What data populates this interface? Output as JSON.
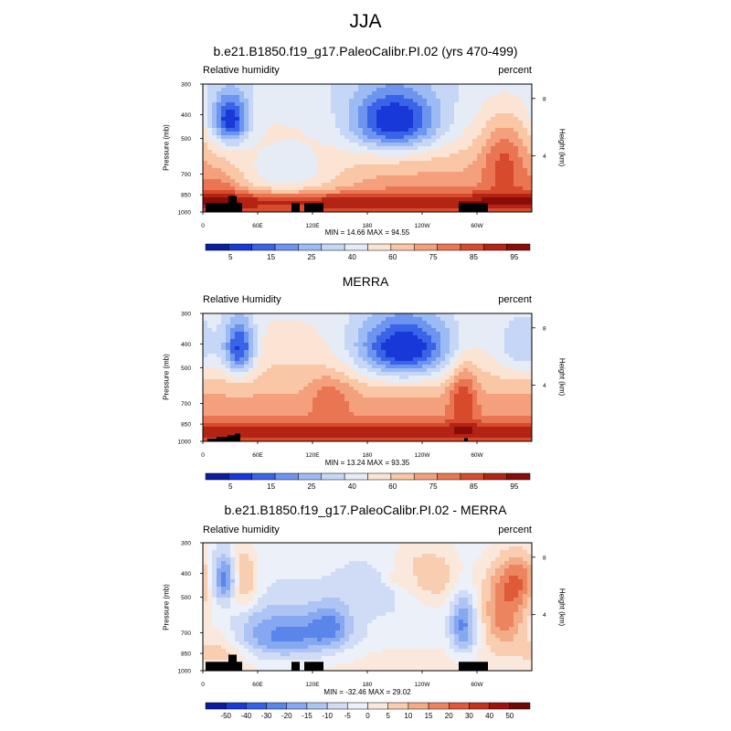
{
  "figure": {
    "title": "JJA"
  },
  "chart_data": [
    {
      "type": "heatmap",
      "title": "b.e21.B1850.f19_g17.PaleoCalibr.PI.02 (yrs 470-499)",
      "variable": "Relative humidity",
      "units": "percent",
      "ylabel": "Pressure (mb)",
      "ylabel_right": "Height (km)",
      "x_ticks": [
        "0",
        "60E",
        "120E",
        "180",
        "120W",
        "60W"
      ],
      "x_tick_values": [
        0,
        60,
        120,
        180,
        240,
        300
      ],
      "xlim": [
        0,
        360
      ],
      "y_ticks": [
        300,
        400,
        500,
        700,
        850,
        1000
      ],
      "ylim": [
        1000,
        300
      ],
      "height_ticks_km": [
        4,
        8
      ],
      "stats": "MIN = 14.66  MAX = 94.55",
      "min": 14.66,
      "max": 94.55,
      "colorbar_labels": [
        "5",
        "15",
        "25",
        "40",
        "60",
        "75",
        "85",
        "95"
      ],
      "features": [
        {
          "lon": 30,
          "p": 420,
          "rh": 15
        },
        {
          "lon": 210,
          "p": 430,
          "rh": 18
        },
        {
          "lon": 330,
          "p": 600,
          "rh": 75
        },
        {
          "lon": 90,
          "p": 720,
          "rh": 30
        },
        {
          "lon": 190,
          "p": 900,
          "rh": 92
        },
        {
          "lon": 20,
          "p": 800,
          "rh": 80
        }
      ]
    },
    {
      "type": "heatmap",
      "title": "MERRA",
      "variable": "Relative Humidity",
      "units": "percent",
      "ylabel": "Pressure (mb)",
      "ylabel_right": "Height (km)",
      "x_ticks": [
        "0",
        "60E",
        "120E",
        "180",
        "120W",
        "60W"
      ],
      "x_tick_values": [
        0,
        60,
        120,
        180,
        240,
        300
      ],
      "xlim": [
        0,
        360
      ],
      "y_ticks": [
        300,
        400,
        500,
        700,
        850,
        1000
      ],
      "ylim": [
        1000,
        300
      ],
      "height_ticks_km": [
        4,
        8
      ],
      "stats": "MIN = 13.24  MAX = 93.35",
      "min": 13.24,
      "max": 93.35,
      "colorbar_labels": [
        "5",
        "15",
        "25",
        "40",
        "60",
        "75",
        "85",
        "95"
      ],
      "features": [
        {
          "lon": 40,
          "p": 420,
          "rh": 20
        },
        {
          "lon": 220,
          "p": 420,
          "rh": 15
        },
        {
          "lon": 140,
          "p": 650,
          "rh": 75
        },
        {
          "lon": 285,
          "p": 650,
          "rh": 85
        },
        {
          "lon": 180,
          "p": 900,
          "rh": 90
        }
      ]
    },
    {
      "type": "heatmap",
      "title": "b.e21.B1850.f19_g17.PaleoCalibr.PI.02 - MERRA",
      "variable": "Relative humidity",
      "units": "percent",
      "ylabel": "Pressure (mb)",
      "ylabel_right": "Height (km)",
      "x_ticks": [
        "0",
        "60E",
        "120E",
        "180",
        "120W",
        "60W"
      ],
      "x_tick_values": [
        0,
        60,
        120,
        180,
        240,
        300
      ],
      "xlim": [
        0,
        360
      ],
      "y_ticks": [
        300,
        400,
        500,
        700,
        850,
        1000
      ],
      "ylim": [
        1000,
        300
      ],
      "height_ticks_km": [
        4,
        8
      ],
      "stats": "MIN = -32.46  MAX = 29.02",
      "min": -32.46,
      "max": 29.02,
      "colorbar_labels": [
        "-50",
        "-40",
        "-30",
        "-20",
        "-15",
        "-10",
        "-5",
        "0",
        "5",
        "10",
        "15",
        "20",
        "30",
        "40",
        "50"
      ],
      "features": [
        {
          "lon": 20,
          "p": 480,
          "diff": -30
        },
        {
          "lon": 290,
          "p": 480,
          "diff": -30
        },
        {
          "lon": 340,
          "p": 350,
          "diff": 25
        },
        {
          "lon": 180,
          "p": 400,
          "diff": 10
        },
        {
          "lon": 200,
          "p": 830,
          "diff": 15
        }
      ]
    }
  ],
  "colors": {
    "rh_scale": [
      "#0a1e9e",
      "#1838d8",
      "#3a64e8",
      "#6d94ee",
      "#9cbaf3",
      "#c6d6f6",
      "#e6ecf6",
      "#fbe4d4",
      "#f9c6a6",
      "#f4a07c",
      "#ea7552",
      "#d84a2c",
      "#b42414",
      "#8a0c08"
    ],
    "diff_scale": [
      "#0a1e9e",
      "#1a3ad6",
      "#3562e6",
      "#5a86ec",
      "#86a8f0",
      "#aec4f4",
      "#d0dcf6",
      "#ecf0f8",
      "#fbe8dc",
      "#f9cdb0",
      "#f4ab88",
      "#ec8460",
      "#df5a38",
      "#c4321c",
      "#9c160c",
      "#700806"
    ],
    "terrain": "#000000"
  }
}
